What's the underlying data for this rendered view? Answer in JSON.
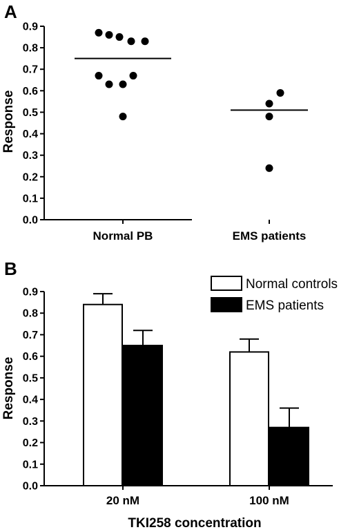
{
  "chart_data": [
    {
      "panel": "A",
      "type": "scatter",
      "ylabel": "Response",
      "ylim": [
        0,
        0.9
      ],
      "yticks": [
        "0.0",
        "0.1",
        "0.2",
        "0.3",
        "0.4",
        "0.5",
        "0.6",
        "0.7",
        "0.8",
        "0.9"
      ],
      "categories": [
        "Normal PB",
        "EMS patients"
      ],
      "groups": [
        {
          "category": "Normal PB",
          "points": [
            0.87,
            0.86,
            0.85,
            0.83,
            0.83,
            0.67,
            0.67,
            0.63,
            0.63,
            0.48
          ],
          "mean": 0.75
        },
        {
          "category": "EMS patients",
          "points": [
            0.59,
            0.54,
            0.48,
            0.24
          ],
          "mean": 0.51
        }
      ]
    },
    {
      "panel": "B",
      "type": "bar",
      "ylabel": "Response",
      "xlabel": "TKI258 concentration",
      "ylim": [
        0,
        0.9
      ],
      "yticks": [
        "0.0",
        "0.1",
        "0.2",
        "0.3",
        "0.4",
        "0.5",
        "0.6",
        "0.7",
        "0.8",
        "0.9"
      ],
      "categories": [
        "20 nM",
        "100 nM"
      ],
      "legend_position": "top-right",
      "series": [
        {
          "name": "Normal controls",
          "color": "#ffffff",
          "values": [
            0.84,
            0.62
          ],
          "errors": [
            0.05,
            0.06
          ]
        },
        {
          "name": "EMS patients",
          "color": "#000000",
          "values": [
            0.65,
            0.27
          ],
          "errors": [
            0.07,
            0.09
          ]
        }
      ]
    }
  ]
}
